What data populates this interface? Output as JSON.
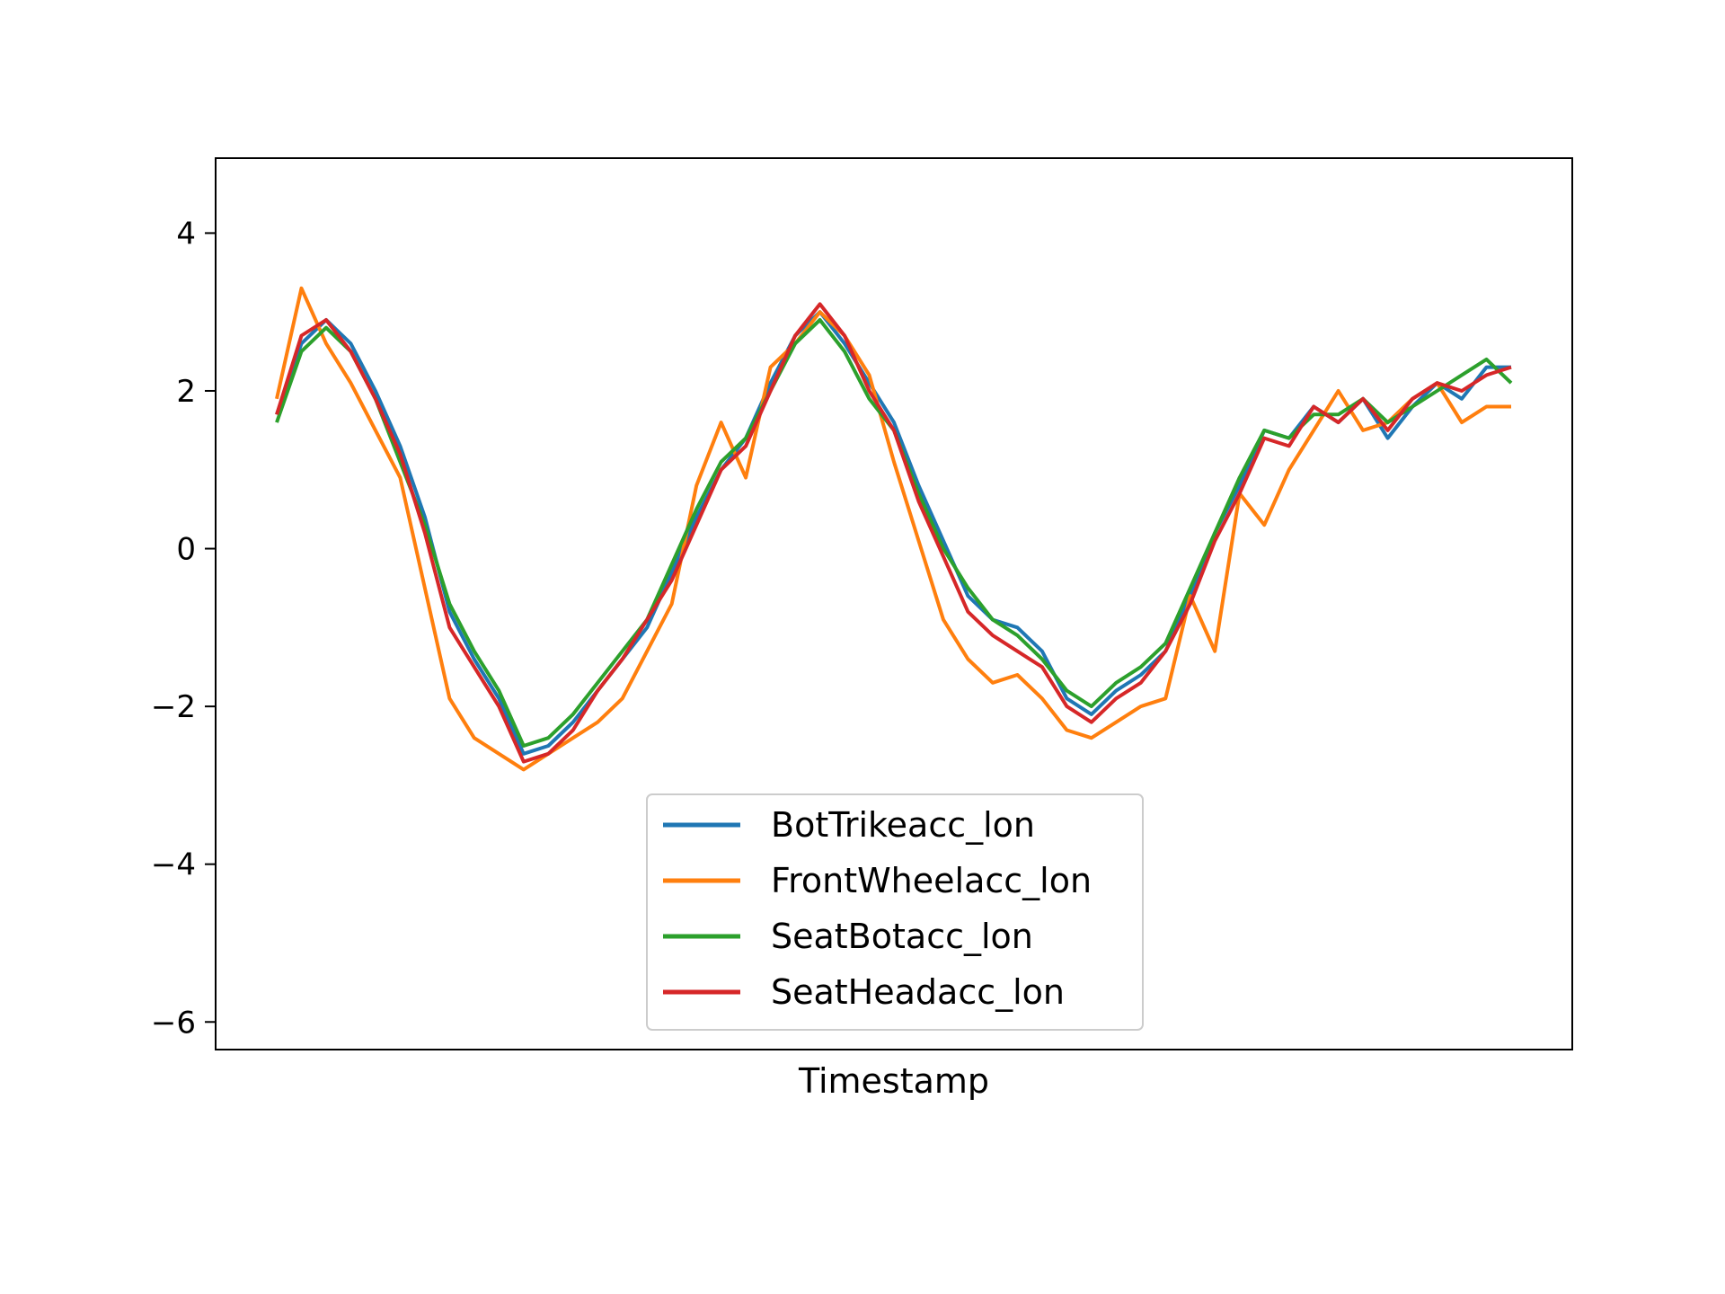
{
  "chart_data": {
    "type": "line",
    "title": "",
    "xlabel": "Timestamp",
    "ylabel": "",
    "ylim": [
      -6.35,
      4.95
    ],
    "yticks": [
      4,
      2,
      0,
      -2,
      -4,
      -6
    ],
    "ytick_labels": [
      "4",
      "2",
      "0",
      "−2",
      "−4",
      "−6"
    ],
    "grid": false,
    "legend_position": "lower-center",
    "x": [
      0,
      20,
      40,
      60,
      80,
      100,
      120,
      140,
      160,
      180,
      200,
      220,
      240,
      260,
      280,
      300,
      320,
      340,
      360,
      380,
      400,
      420,
      440,
      460,
      480,
      500,
      520,
      540,
      560,
      580,
      600,
      620,
      640,
      660,
      680,
      700,
      720,
      740,
      760,
      780,
      800,
      820,
      840,
      860,
      880,
      900,
      920,
      940,
      960,
      980,
      1000
    ],
    "series": [
      {
        "name": "BotTrikeacc_lon",
        "color": "#1f77b4",
        "values": [
          1.7,
          2.6,
          2.9,
          2.6,
          2.0,
          1.3,
          0.4,
          -0.8,
          -1.4,
          -1.9,
          -2.6,
          -2.5,
          -2.2,
          -1.8,
          -1.4,
          -1.0,
          -0.3,
          0.4,
          1.0,
          1.4,
          2.1,
          2.7,
          3.0,
          2.6,
          2.1,
          1.6,
          0.8,
          0.1,
          -0.6,
          -0.9,
          -1.0,
          -1.3,
          -1.9,
          -2.1,
          -1.8,
          -1.6,
          -1.3,
          -0.6,
          0.2,
          0.8,
          1.5,
          1.4,
          1.8,
          1.6,
          1.9,
          1.4,
          1.8,
          2.1,
          1.9,
          2.3,
          2.3
        ]
      },
      {
        "name": "FrontWheelacc_lon",
        "color": "#ff7f0e",
        "values": [
          1.9,
          3.3,
          2.6,
          2.1,
          1.5,
          0.9,
          -0.5,
          -1.9,
          -2.4,
          -2.6,
          -2.8,
          -2.6,
          -2.4,
          -2.2,
          -1.9,
          -1.3,
          -0.7,
          0.8,
          1.6,
          0.9,
          2.3,
          2.6,
          3.0,
          2.7,
          2.2,
          1.1,
          0.1,
          -0.9,
          -1.4,
          -1.7,
          -1.6,
          -1.9,
          -2.3,
          -2.4,
          -2.2,
          -2.0,
          -1.9,
          -0.6,
          -1.3,
          0.7,
          0.3,
          1.0,
          1.5,
          2.0,
          1.5,
          1.6,
          1.9,
          2.1,
          1.6,
          1.8,
          1.8
        ]
      },
      {
        "name": "SeatBotacc_lon",
        "color": "#2ca02c",
        "values": [
          1.6,
          2.5,
          2.8,
          2.5,
          1.9,
          1.1,
          0.3,
          -0.7,
          -1.3,
          -1.8,
          -2.5,
          -2.4,
          -2.1,
          -1.7,
          -1.3,
          -0.9,
          -0.2,
          0.5,
          1.1,
          1.4,
          2.0,
          2.6,
          2.9,
          2.5,
          1.9,
          1.5,
          0.7,
          0.0,
          -0.5,
          -0.9,
          -1.1,
          -1.4,
          -1.8,
          -2.0,
          -1.7,
          -1.5,
          -1.2,
          -0.5,
          0.2,
          0.9,
          1.5,
          1.4,
          1.7,
          1.7,
          1.9,
          1.6,
          1.8,
          2.0,
          2.2,
          2.4,
          2.1
        ]
      },
      {
        "name": "SeatHeadacc_lon",
        "color": "#d62728",
        "values": [
          1.7,
          2.7,
          2.9,
          2.5,
          1.9,
          1.2,
          0.2,
          -1.0,
          -1.5,
          -2.0,
          -2.7,
          -2.6,
          -2.3,
          -1.8,
          -1.4,
          -0.9,
          -0.4,
          0.3,
          1.0,
          1.3,
          2.0,
          2.7,
          3.1,
          2.7,
          2.0,
          1.5,
          0.6,
          -0.1,
          -0.8,
          -1.1,
          -1.3,
          -1.5,
          -2.0,
          -2.2,
          -1.9,
          -1.7,
          -1.3,
          -0.7,
          0.1,
          0.7,
          1.4,
          1.3,
          1.8,
          1.6,
          1.9,
          1.5,
          1.9,
          2.1,
          2.0,
          2.2,
          2.3
        ]
      }
    ]
  }
}
